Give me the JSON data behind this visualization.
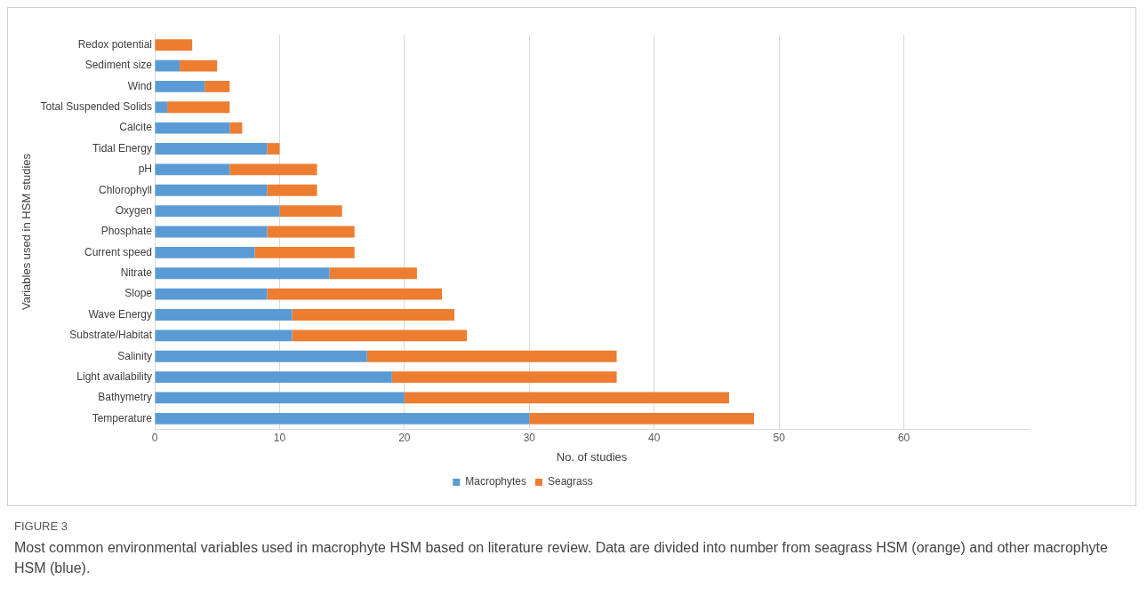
{
  "chart_data": {
    "type": "bar",
    "orientation": "horizontal",
    "stacked": true,
    "xlabel": "No. of studies",
    "ylabel": "Variables used in HSM studies",
    "categories": [
      "Redox potential",
      "Sediment size",
      "Wind",
      "Total Suspended Solids",
      "Calcite",
      "Tidal Energy",
      "pH",
      "Chlorophyll",
      "Oxygen",
      "Phosphate",
      "Current speed",
      "Nitrate",
      "Slope",
      "Wave Energy",
      "Substrate/Habitat",
      "Salinity",
      "Light availability",
      "Bathymetry",
      "Temperature"
    ],
    "series": [
      {
        "name": "Macrophytes",
        "color": "#5b9bd5",
        "values": [
          0,
          2,
          4,
          1,
          6,
          9,
          6,
          9,
          10,
          9,
          8,
          14,
          9,
          11,
          11,
          17,
          19,
          20,
          30
        ]
      },
      {
        "name": "Seagrass",
        "color": "#ed7d31",
        "values": [
          3,
          3,
          2,
          5,
          1,
          1,
          7,
          4,
          5,
          7,
          8,
          7,
          14,
          13,
          14,
          20,
          18,
          26,
          18
        ]
      }
    ],
    "xlim": [
      0,
      70
    ],
    "xticks": [
      0,
      10,
      20,
      30,
      40,
      50,
      60
    ],
    "grid": "x",
    "legend": "bottom",
    "annotations": [
      "FIGURE 3",
      "Most common environmental variables used in macrophyte HSM based on literature review. Data are divided into number from seagrass HSM (orange) and other macrophyte HSM (blue)."
    ]
  }
}
